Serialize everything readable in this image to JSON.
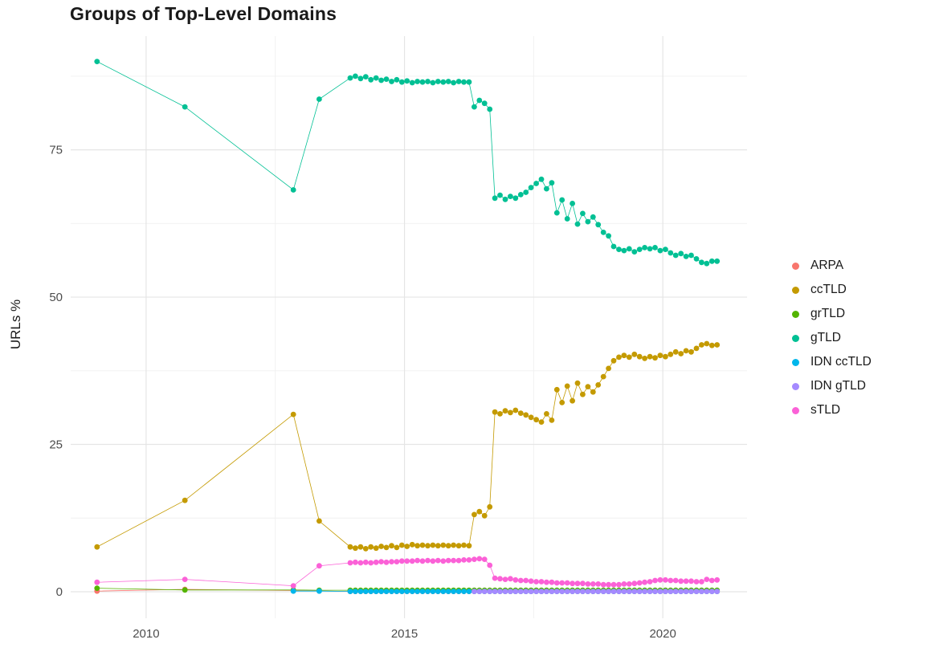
{
  "chart_data": {
    "type": "scatter",
    "title": "Groups of Top-Level Domains",
    "xlabel": "",
    "ylabel": "URLs %",
    "xlim": [
      2008.54,
      2021.63
    ],
    "ylim": [
      -4.5,
      94.3
    ],
    "x_ticks": [
      2010,
      2015,
      2020
    ],
    "y_ticks": [
      0,
      25,
      50,
      75
    ],
    "grid": "major+minor",
    "legend_position": "right",
    "sparse_x": [
      2009.05,
      2010.75,
      2012.85,
      2013.35
    ],
    "dense_x": [
      2013.95,
      2014.05,
      2014.15,
      2014.25,
      2014.35,
      2014.45,
      2014.55,
      2014.65,
      2014.75,
      2014.85,
      2014.95,
      2015.05,
      2015.15,
      2015.25,
      2015.35,
      2015.45,
      2015.55,
      2015.65,
      2015.75,
      2015.85,
      2015.95,
      2016.05,
      2016.15,
      2016.25,
      2016.35,
      2016.45,
      2016.55,
      2016.65,
      2016.75,
      2016.85,
      2016.95,
      2017.05,
      2017.15,
      2017.25,
      2017.35,
      2017.45,
      2017.55,
      2017.65,
      2017.75,
      2017.85,
      2017.95,
      2018.05,
      2018.15,
      2018.25,
      2018.35,
      2018.45,
      2018.55,
      2018.65,
      2018.75,
      2018.85,
      2018.95,
      2019.05,
      2019.15,
      2019.25,
      2019.35,
      2019.45,
      2019.55,
      2019.65,
      2019.75,
      2019.85,
      2019.95,
      2020.05,
      2020.15,
      2020.25,
      2020.35,
      2020.45,
      2020.55,
      2020.65,
      2020.75,
      2020.85,
      2020.95,
      2021.05
    ],
    "series": [
      {
        "name": "ARPA",
        "color": "#F8766D",
        "sparse_y": [
          0.1,
          0.4,
          0.2,
          null
        ],
        "dense_y": [
          0.05,
          0.05,
          0.05,
          0.05,
          0.05,
          0.05,
          0.05,
          0.05,
          0.05,
          0.05,
          0.05,
          0.05,
          0.05,
          0.05,
          0.05,
          0.05,
          0.05,
          0.05,
          0.05,
          0.05,
          0.05,
          0.05,
          0.05,
          0.05,
          0.05,
          0.05,
          0.05,
          0.05,
          0.05,
          0.05,
          0.05,
          0.05,
          0.05,
          0.05,
          0.05,
          0.05,
          0.05,
          0.05,
          0.05,
          0.05,
          0.05,
          0.05,
          0.05,
          0.05,
          0.05,
          0.05,
          0.05,
          0.05,
          0.05,
          0.05,
          0.05,
          0.05,
          0.05,
          0.05,
          0.05,
          0.05,
          0.05,
          0.05,
          0.05,
          0.05,
          0.05,
          0.05,
          0.05,
          0.05,
          0.05,
          0.05,
          0.05,
          0.05,
          0.05,
          0.05,
          0.05,
          0.05
        ]
      },
      {
        "name": "ccTLD",
        "color": "#C49A00",
        "sparse_y": [
          7.6,
          15.5,
          30.1,
          12.0
        ],
        "dense_y": [
          7.6,
          7.4,
          7.6,
          7.3,
          7.6,
          7.4,
          7.7,
          7.5,
          7.8,
          7.5,
          7.9,
          7.7,
          8.0,
          7.8,
          7.9,
          7.8,
          7.9,
          7.8,
          7.9,
          7.8,
          7.9,
          7.8,
          7.9,
          7.8,
          13.1,
          13.6,
          12.9,
          14.4,
          30.5,
          30.2,
          30.7,
          30.4,
          30.8,
          30.3,
          30.0,
          29.6,
          29.2,
          28.8,
          30.2,
          29.1,
          34.3,
          32.1,
          34.9,
          32.4,
          35.4,
          33.5,
          34.8,
          33.9,
          35.1,
          36.5,
          37.9,
          39.2,
          39.8,
          40.1,
          39.8,
          40.3,
          39.9,
          39.6,
          39.9,
          39.7,
          40.1,
          39.9,
          40.3,
          40.7,
          40.4,
          40.9,
          40.7,
          41.3,
          41.9,
          42.1,
          41.8,
          41.9
        ]
      },
      {
        "name": "grTLD",
        "color": "#53B400",
        "sparse_y": [
          0.6,
          0.3,
          0.3,
          0.25
        ],
        "dense_y": [
          0.25,
          0.25,
          0.25,
          0.25,
          0.25,
          0.25,
          0.25,
          0.25,
          0.25,
          0.25,
          0.25,
          0.25,
          0.25,
          0.25,
          0.25,
          0.25,
          0.25,
          0.25,
          0.25,
          0.25,
          0.25,
          0.25,
          0.25,
          0.25,
          0.25,
          0.25,
          0.25,
          0.25,
          0.25,
          0.25,
          0.25,
          0.25,
          0.25,
          0.25,
          0.25,
          0.25,
          0.25,
          0.25,
          0.25,
          0.25,
          0.25,
          0.25,
          0.25,
          0.25,
          0.25,
          0.25,
          0.25,
          0.25,
          0.25,
          0.25,
          0.25,
          0.25,
          0.25,
          0.25,
          0.25,
          0.25,
          0.25,
          0.25,
          0.25,
          0.25,
          0.25,
          0.25,
          0.25,
          0.25,
          0.25,
          0.25,
          0.25,
          0.25,
          0.25,
          0.25,
          0.25,
          0.25
        ]
      },
      {
        "name": "gTLD",
        "color": "#00C094",
        "sparse_y": [
          90.0,
          82.3,
          68.2,
          83.6
        ],
        "dense_y": [
          87.2,
          87.5,
          87.1,
          87.4,
          86.9,
          87.2,
          86.8,
          87.0,
          86.6,
          86.9,
          86.5,
          86.7,
          86.4,
          86.6,
          86.5,
          86.6,
          86.4,
          86.6,
          86.5,
          86.6,
          86.4,
          86.6,
          86.5,
          86.5,
          82.3,
          83.4,
          82.9,
          81.9,
          66.8,
          67.3,
          66.6,
          67.1,
          66.8,
          67.4,
          67.8,
          68.6,
          69.3,
          70.0,
          68.4,
          69.4,
          64.3,
          66.5,
          63.3,
          65.9,
          62.4,
          64.2,
          62.8,
          63.6,
          62.3,
          61.0,
          60.4,
          58.6,
          58.1,
          57.9,
          58.2,
          57.7,
          58.1,
          58.4,
          58.2,
          58.4,
          57.9,
          58.1,
          57.5,
          57.1,
          57.4,
          56.9,
          57.1,
          56.5,
          55.9,
          55.7,
          56.1,
          56.1
        ]
      },
      {
        "name": "IDN ccTLD",
        "color": "#00B6EB",
        "sparse_y": [
          null,
          null,
          0.1,
          0.1
        ],
        "dense_y": [
          0.05,
          0.05,
          0.05,
          0.05,
          0.05,
          0.05,
          0.05,
          0.05,
          0.05,
          0.05,
          0.05,
          0.05,
          0.05,
          0.05,
          0.05,
          0.05,
          0.05,
          0.05,
          0.05,
          0.05,
          0.05,
          0.05,
          0.05,
          0.05,
          0.05,
          0.05,
          0.05,
          0.05,
          0.05,
          0.05,
          0.05,
          0.05,
          0.05,
          0.05,
          0.05,
          0.05,
          0.05,
          0.05,
          0.05,
          0.05,
          0.05,
          0.05,
          0.05,
          0.05,
          0.05,
          0.05,
          0.05,
          0.05,
          0.05,
          0.05,
          0.05,
          0.05,
          0.05,
          0.05,
          0.05,
          0.05,
          0.05,
          0.05,
          0.05,
          0.05,
          0.05,
          0.05,
          0.05,
          0.05,
          0.05,
          0.05,
          0.05,
          0.05,
          0.05,
          0.05,
          0.05,
          0.05
        ]
      },
      {
        "name": "IDN gTLD",
        "color": "#A58AFF",
        "sparse_y": [
          null,
          null,
          null,
          null
        ],
        "dense_y": [
          null,
          null,
          null,
          null,
          null,
          null,
          null,
          null,
          null,
          null,
          null,
          null,
          null,
          null,
          null,
          null,
          null,
          null,
          null,
          null,
          null,
          null,
          null,
          null,
          0.05,
          0.05,
          0.05,
          0.05,
          0.05,
          0.05,
          0.05,
          0.05,
          0.05,
          0.05,
          0.05,
          0.05,
          0.05,
          0.05,
          0.05,
          0.05,
          0.05,
          0.05,
          0.05,
          0.05,
          0.05,
          0.05,
          0.05,
          0.05,
          0.05,
          0.05,
          0.05,
          0.05,
          0.05,
          0.05,
          0.05,
          0.05,
          0.05,
          0.05,
          0.05,
          0.05,
          0.05,
          0.05,
          0.05,
          0.05,
          0.05,
          0.05,
          0.05,
          0.05,
          0.05,
          0.05,
          0.05,
          0.05
        ]
      },
      {
        "name": "sTLD",
        "color": "#FB61D7",
        "sparse_y": [
          1.6,
          2.1,
          1.0,
          4.4
        ],
        "dense_y": [
          4.9,
          5.0,
          4.9,
          5.0,
          4.9,
          5.0,
          5.1,
          5.0,
          5.1,
          5.1,
          5.2,
          5.2,
          5.2,
          5.3,
          5.2,
          5.3,
          5.2,
          5.3,
          5.2,
          5.3,
          5.3,
          5.3,
          5.4,
          5.4,
          5.5,
          5.6,
          5.5,
          4.5,
          2.3,
          2.2,
          2.1,
          2.2,
          2.0,
          1.9,
          1.9,
          1.8,
          1.7,
          1.7,
          1.6,
          1.6,
          1.5,
          1.5,
          1.5,
          1.4,
          1.4,
          1.4,
          1.3,
          1.3,
          1.3,
          1.2,
          1.2,
          1.2,
          1.2,
          1.3,
          1.3,
          1.4,
          1.5,
          1.6,
          1.7,
          1.9,
          2.0,
          2.0,
          1.9,
          1.9,
          1.8,
          1.8,
          1.8,
          1.7,
          1.7,
          2.1,
          1.9,
          2.0
        ]
      }
    ]
  }
}
